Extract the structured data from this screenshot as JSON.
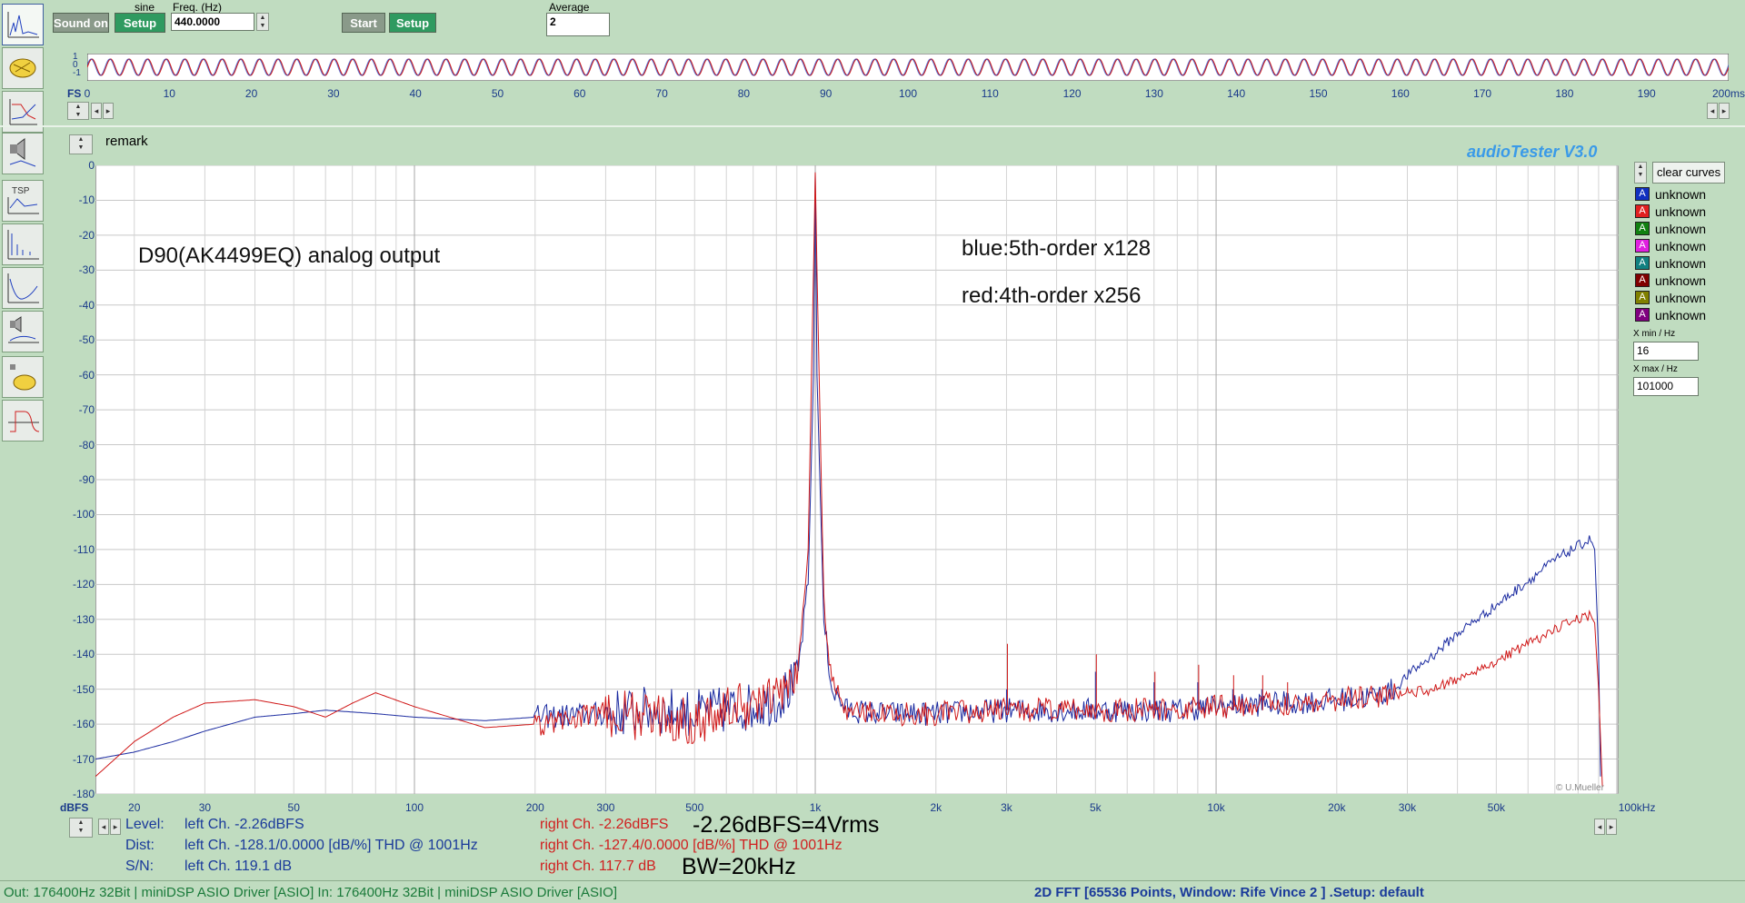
{
  "toolbar": {
    "sound_btn": "Sound on",
    "setup1": "Setup",
    "wave_label": "sine",
    "freq_label": "Freq. (Hz)",
    "freq_value": "440.0000",
    "start_btn": "Start",
    "setup2": "Setup",
    "average_label": "Average",
    "average_value": "2"
  },
  "scope": {
    "y_labels": [
      "1",
      "0",
      "-1"
    ],
    "x_ticks": [
      "0",
      "10",
      "20",
      "30",
      "40",
      "50",
      "60",
      "70",
      "80",
      "90",
      "100",
      "110",
      "120",
      "130",
      "140",
      "150",
      "160",
      "170",
      "180",
      "190",
      "200ms"
    ],
    "fs_label": "FS"
  },
  "remark_label": "remark",
  "brand": "audioTester  V3.0",
  "annotations": {
    "title": "D90(AK4499EQ) analog output",
    "blue": "blue:5th-order x128",
    "red": "red:4th-order x256",
    "copyright": "© U.Mueller"
  },
  "sidebar_tools": [
    "time-icon",
    "hand-icon",
    "bode-icon",
    "speaker-icon",
    "tsp-icon",
    "spectrum-icon",
    "impedance-icon",
    "speaker2-icon",
    "hand2-icon",
    "step-icon"
  ],
  "right_panel": {
    "clear_btn": "clear curves",
    "legend": [
      {
        "letter": "A",
        "color": "#1030c0",
        "label": "unknown"
      },
      {
        "letter": "A",
        "color": "#e02020",
        "label": "unknown"
      },
      {
        "letter": "A",
        "color": "#108010",
        "label": "unknown"
      },
      {
        "letter": "A",
        "color": "#e020e0",
        "label": "unknown"
      },
      {
        "letter": "A",
        "color": "#108080",
        "label": "unknown"
      },
      {
        "letter": "A",
        "color": "#800000",
        "label": "unknown"
      },
      {
        "letter": "A",
        "color": "#808000",
        "label": "unknown"
      },
      {
        "letter": "A",
        "color": "#800080",
        "label": "unknown"
      }
    ],
    "xmin_label": "X min / Hz",
    "xmin_value": "16",
    "xmax_label": "X max / Hz",
    "xmax_value": "101000"
  },
  "chart_data": {
    "type": "line",
    "title": "",
    "xlabel": "",
    "ylabel": "dBFS",
    "x_scale": "log",
    "xlim": [
      16,
      101000
    ],
    "ylim": [
      -180,
      0
    ],
    "x_tick_labels": [
      {
        "f": 20,
        "label": "20"
      },
      {
        "f": 30,
        "label": "30"
      },
      {
        "f": 50,
        "label": "50"
      },
      {
        "f": 100,
        "label": "100"
      },
      {
        "f": 200,
        "label": "200"
      },
      {
        "f": 300,
        "label": "300"
      },
      {
        "f": 500,
        "label": "500"
      },
      {
        "f": 1000,
        "label": "1k"
      },
      {
        "f": 2000,
        "label": "2k"
      },
      {
        "f": 3000,
        "label": "3k"
      },
      {
        "f": 5000,
        "label": "5k"
      },
      {
        "f": 10000,
        "label": "10k"
      },
      {
        "f": 20000,
        "label": "20k"
      },
      {
        "f": 30000,
        "label": "30k"
      },
      {
        "f": 50000,
        "label": "50k"
      },
      {
        "f": 100000,
        "label": "100kHz"
      }
    ],
    "y_ticks": [
      0,
      -10,
      -20,
      -30,
      -40,
      -50,
      -60,
      -70,
      -80,
      -90,
      -100,
      -110,
      -120,
      -130,
      -140,
      -150,
      -160,
      -170,
      -180
    ],
    "grid": true,
    "series": [
      {
        "color": "#1a2aa0",
        "values": [
          [
            16,
            -170
          ],
          [
            20,
            -168
          ],
          [
            25,
            -165
          ],
          [
            30,
            -162
          ],
          [
            40,
            -158
          ],
          [
            50,
            -157
          ],
          [
            60,
            -156
          ],
          [
            80,
            -157
          ],
          [
            100,
            -158
          ],
          [
            150,
            -159
          ],
          [
            200,
            -158
          ],
          [
            300,
            -157
          ],
          [
            400,
            -156
          ],
          [
            500,
            -157
          ],
          [
            600,
            -156
          ],
          [
            700,
            -155
          ],
          [
            800,
            -153
          ],
          [
            900,
            -148
          ],
          [
            960,
            -120
          ],
          [
            990,
            -60
          ],
          [
            1000,
            -2
          ],
          [
            1010,
            -60
          ],
          [
            1050,
            -130
          ],
          [
            1100,
            -150
          ],
          [
            1200,
            -156
          ],
          [
            1500,
            -157
          ],
          [
            2000,
            -157
          ],
          [
            3000,
            -156
          ],
          [
            5000,
            -156
          ],
          [
            8000,
            -156
          ],
          [
            10000,
            -155
          ],
          [
            15000,
            -154
          ],
          [
            20000,
            -153
          ],
          [
            25000,
            -152
          ],
          [
            28000,
            -150
          ],
          [
            30000,
            -146
          ],
          [
            35000,
            -140
          ],
          [
            40000,
            -134
          ],
          [
            50000,
            -126
          ],
          [
            60000,
            -119
          ],
          [
            70000,
            -113
          ],
          [
            80000,
            -109
          ],
          [
            86000,
            -107
          ],
          [
            88000,
            -110
          ],
          [
            90000,
            -140
          ],
          [
            91000,
            -175
          ]
        ]
      },
      {
        "color": "#d01818",
        "values": [
          [
            16,
            -175
          ],
          [
            20,
            -165
          ],
          [
            25,
            -158
          ],
          [
            30,
            -154
          ],
          [
            40,
            -153
          ],
          [
            50,
            -155
          ],
          [
            60,
            -158
          ],
          [
            70,
            -154
          ],
          [
            80,
            -151
          ],
          [
            100,
            -155
          ],
          [
            150,
            -161
          ],
          [
            200,
            -160
          ],
          [
            300,
            -157
          ],
          [
            400,
            -158
          ],
          [
            500,
            -159
          ],
          [
            600,
            -156
          ],
          [
            700,
            -154
          ],
          [
            800,
            -152
          ],
          [
            900,
            -147
          ],
          [
            960,
            -110
          ],
          [
            990,
            -30
          ],
          [
            1000,
            -2
          ],
          [
            1010,
            -30
          ],
          [
            1050,
            -125
          ],
          [
            1100,
            -148
          ],
          [
            1200,
            -156
          ],
          [
            1500,
            -157
          ],
          [
            2000,
            -157
          ],
          [
            3000,
            -156
          ],
          [
            5000,
            -156
          ],
          [
            8000,
            -156
          ],
          [
            10000,
            -155
          ],
          [
            15000,
            -154
          ],
          [
            20000,
            -153
          ],
          [
            25000,
            -152
          ],
          [
            30000,
            -151
          ],
          [
            35000,
            -150
          ],
          [
            40000,
            -147
          ],
          [
            50000,
            -142
          ],
          [
            60000,
            -137
          ],
          [
            70000,
            -133
          ],
          [
            80000,
            -130
          ],
          [
            86000,
            -129
          ],
          [
            88000,
            -131
          ],
          [
            90000,
            -150
          ],
          [
            92000,
            -178
          ]
        ]
      }
    ],
    "spurs": [
      {
        "f": 3000,
        "blue": -150,
        "red": -137
      },
      {
        "f": 5000,
        "blue": -145,
        "red": -140
      },
      {
        "f": 7000,
        "blue": -148,
        "red": -145
      },
      {
        "f": 9000,
        "blue": -148,
        "red": -143
      },
      {
        "f": 11000,
        "blue": -150,
        "red": -146
      },
      {
        "f": 13000,
        "blue": -150,
        "red": -146
      },
      {
        "f": 15000,
        "blue": -151,
        "red": -148
      }
    ]
  },
  "measurements": {
    "level_label": "Level:",
    "dist_label": "Dist:",
    "sn_label": "S/N:",
    "level_left": "left Ch. -2.26dBFS",
    "level_right": "right Ch. -2.26dBFS",
    "dist_left": "left Ch. -128.1/0.0000 [dB/%] THD @ 1001Hz",
    "dist_right": "right Ch. -127.4/0.0000 [dB/%] THD @ 1001Hz",
    "sn_left": "left Ch. 119.1 dB",
    "sn_right": "right Ch. 117.7 dB",
    "note1": "-2.26dBFS=4Vrms",
    "note2": "BW=20kHz"
  },
  "status": {
    "left": "Out: 176400Hz 32Bit  | miniDSP ASIO Driver [ASIO] In: 176400Hz 32Bit  | miniDSP ASIO Driver [ASIO]",
    "right": "2D FFT [65536 Points, Window: Rife Vince 2 ] .Setup:  default"
  }
}
